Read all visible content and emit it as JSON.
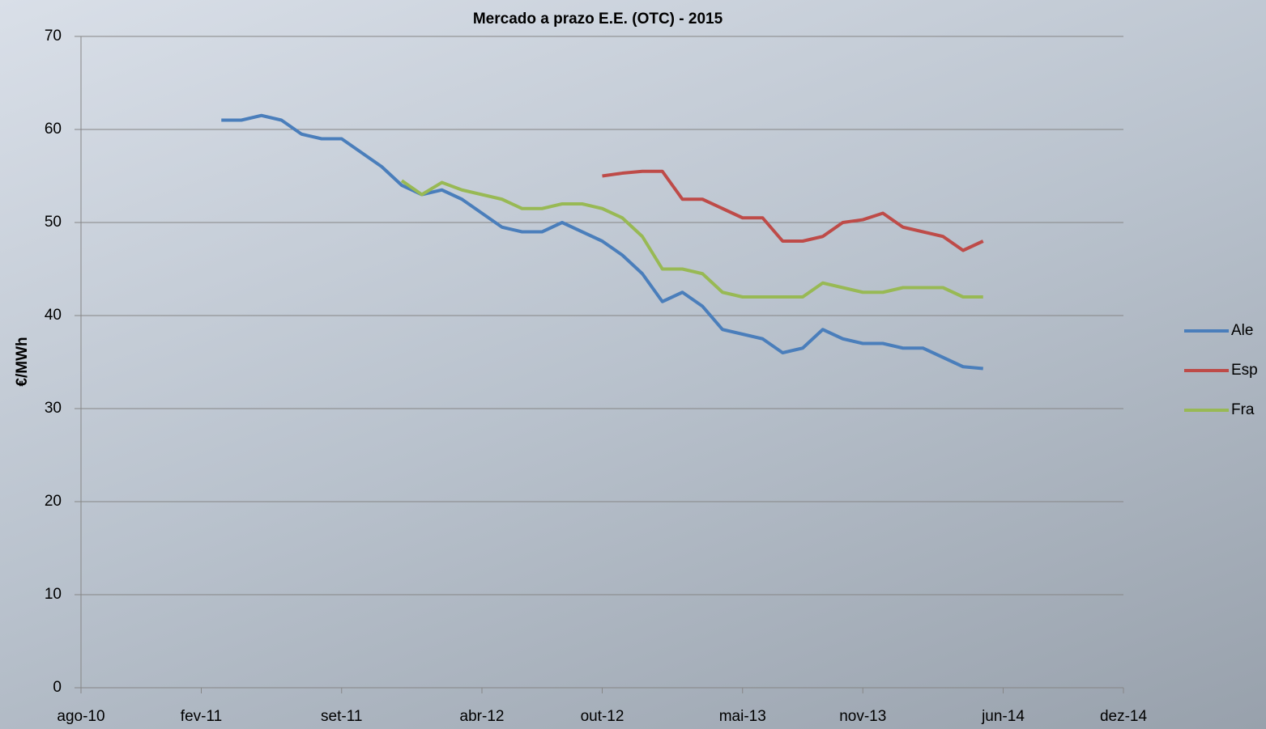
{
  "chart_data": {
    "type": "line",
    "title": "Mercado a prazo E.E. (OTC) - 2015",
    "y_label": "€/MWh",
    "x": [
      "2011-03",
      "2011-04",
      "2011-05",
      "2011-06",
      "2011-07",
      "2011-08",
      "2011-09",
      "2011-10",
      "2011-11",
      "2011-12",
      "2012-01",
      "2012-02",
      "2012-03",
      "2012-04",
      "2012-05",
      "2012-06",
      "2012-07",
      "2012-08",
      "2012-09",
      "2012-10",
      "2012-11",
      "2012-12",
      "2013-01",
      "2013-02",
      "2013-03",
      "2013-04",
      "2013-05",
      "2013-06",
      "2013-07",
      "2013-08",
      "2013-09",
      "2013-10",
      "2013-11",
      "2013-12",
      "2014-01",
      "2014-02",
      "2014-03",
      "2014-04",
      "2014-05"
    ],
    "series": [
      {
        "name": "Ale",
        "color": "#4a7ebb",
        "values": [
          61,
          61,
          61.5,
          61,
          59.5,
          59,
          59,
          57.5,
          56,
          54,
          53,
          53.5,
          52.5,
          51,
          49.5,
          49,
          49,
          50,
          49,
          48,
          46.5,
          44.5,
          41.5,
          42.5,
          41,
          38.5,
          38,
          37.5,
          36,
          36.5,
          38.5,
          37.5,
          37,
          37,
          36.5,
          36.5,
          35.5,
          34.5,
          34.3
        ]
      },
      {
        "name": "Esp",
        "color": "#be4b48",
        "values": [
          null,
          null,
          null,
          null,
          null,
          null,
          null,
          null,
          null,
          null,
          null,
          null,
          null,
          null,
          null,
          null,
          null,
          null,
          null,
          55,
          55.3,
          55.5,
          55.5,
          52.5,
          52.5,
          51.5,
          50.5,
          50.5,
          48,
          48,
          48.5,
          50,
          50.3,
          51,
          49.5,
          49,
          48.5,
          47,
          48
        ]
      },
      {
        "name": "Fra",
        "color": "#98b954",
        "values": [
          null,
          null,
          null,
          null,
          null,
          null,
          null,
          null,
          null,
          54.5,
          53,
          54.3,
          53.5,
          53,
          52.5,
          51.5,
          51.5,
          52,
          52,
          51.5,
          50.5,
          48.5,
          45,
          45,
          44.5,
          42.5,
          42,
          42,
          42,
          42,
          43.5,
          43,
          42.5,
          42.5,
          43,
          43,
          43,
          42,
          42
        ]
      }
    ],
    "xlim": [
      "2010-08",
      "2014-12"
    ],
    "xticks": [
      {
        "value": "2010-08",
        "label": "ago-10"
      },
      {
        "value": "2011-02",
        "label": "fev-11"
      },
      {
        "value": "2011-09",
        "label": "set-11"
      },
      {
        "value": "2012-04",
        "label": "abr-12"
      },
      {
        "value": "2012-10",
        "label": "out-12"
      },
      {
        "value": "2013-05",
        "label": "mai-13"
      },
      {
        "value": "2013-11",
        "label": "nov-13"
      },
      {
        "value": "2014-06",
        "label": "jun-14"
      },
      {
        "value": "2014-12",
        "label": "dez-14"
      }
    ],
    "ylim": [
      0,
      70
    ],
    "yticks": [
      0,
      10,
      20,
      30,
      40,
      50,
      60,
      70
    ],
    "grid": true,
    "legend": "right"
  }
}
